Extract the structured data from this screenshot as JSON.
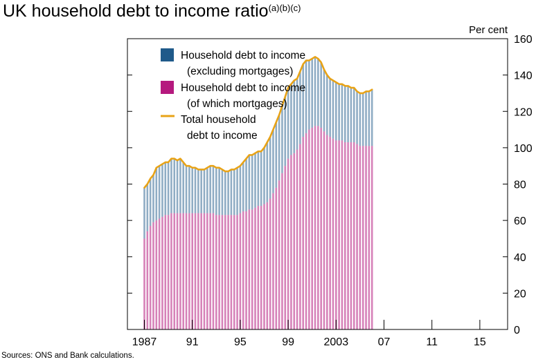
{
  "title": "UK household debt to income ratio",
  "title_superscript": "(a)(b)(c)",
  "source": "Sources: ONS and Bank calculations.",
  "chart_data": {
    "type": "bar",
    "unit_label": "Per cent",
    "ylim": [
      0,
      160
    ],
    "yticks": [
      0,
      20,
      40,
      60,
      80,
      100,
      120,
      140,
      160
    ],
    "x_tick_labels": [
      {
        "label": "1987",
        "year": 1987
      },
      {
        "label": "91",
        "year": 1991
      },
      {
        "label": "95",
        "year": 1995
      },
      {
        "label": "99",
        "year": 1999
      },
      {
        "label": "2003",
        "year": 2003
      },
      {
        "label": "07",
        "year": 2007
      },
      {
        "label": "11",
        "year": 2011
      },
      {
        "label": "15",
        "year": 2015
      }
    ],
    "x_start": 1987.0,
    "x_step": 0.25,
    "legend": [
      {
        "key": "non_mortgage",
        "lines": [
          "Household debt to income",
          "(excluding mortgages)"
        ],
        "color": "#1f5a8a",
        "marker": "box"
      },
      {
        "key": "mortgage",
        "lines": [
          "Household debt to income",
          "(of which mortgages)"
        ],
        "color": "#b5197e",
        "marker": "box"
      },
      {
        "key": "total",
        "lines": [
          "Total household",
          "debt to income"
        ],
        "color": "#e8a317",
        "marker": "line"
      }
    ],
    "series": [
      {
        "name": "Total household debt to income",
        "values": [
          78,
          80,
          83,
          85,
          89,
          90,
          91,
          92,
          92,
          94,
          94,
          93,
          94,
          92,
          90,
          90,
          89,
          89,
          88,
          88,
          88,
          89,
          90,
          90,
          89,
          89,
          88,
          87,
          87,
          88,
          88,
          89,
          90,
          92,
          94,
          96,
          96,
          97,
          98,
          98,
          100,
          103,
          106,
          110,
          114,
          118,
          123,
          128,
          133,
          135,
          137,
          138,
          142,
          146,
          148,
          148,
          149,
          150,
          149,
          147,
          143,
          140,
          138,
          137,
          136,
          135,
          135,
          134,
          134,
          133,
          133,
          131,
          130,
          130,
          131,
          131,
          132
        ]
      },
      {
        "name": "Household debt to income (of which mortgages)",
        "values": [
          50,
          54,
          57,
          59,
          60,
          61,
          62,
          63,
          63,
          64,
          64,
          64,
          64,
          64,
          64,
          64,
          64,
          64,
          64,
          64,
          64,
          64,
          64,
          64,
          63,
          63,
          63,
          63,
          63,
          63,
          63,
          63,
          64,
          65,
          65,
          66,
          66,
          67,
          68,
          68,
          69,
          70,
          72,
          75,
          78,
          82,
          86,
          90,
          94,
          96,
          97,
          99,
          102,
          106,
          108,
          110,
          111,
          112,
          112,
          111,
          109,
          107,
          106,
          105,
          104,
          104,
          104,
          103,
          103,
          103,
          103,
          102,
          101,
          101,
          101,
          101,
          101
        ]
      }
    ]
  }
}
